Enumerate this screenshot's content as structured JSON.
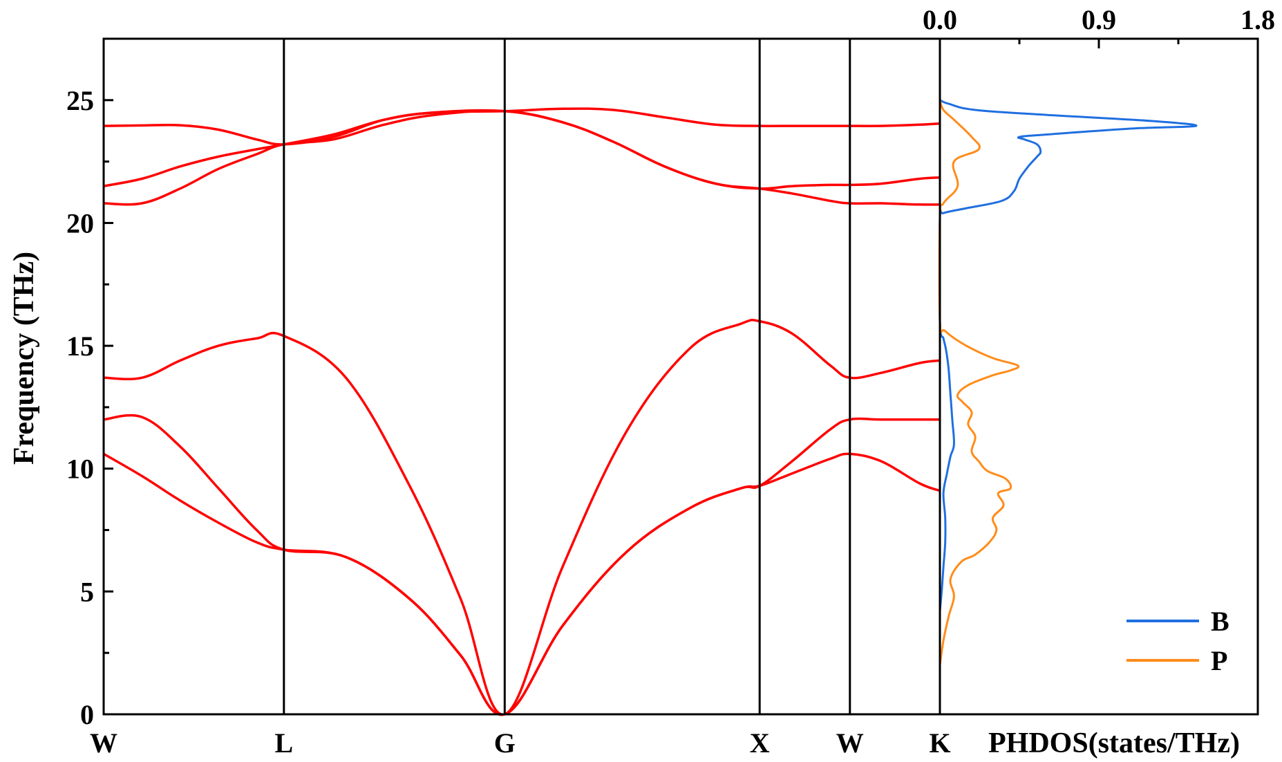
{
  "chart_data": [
    {
      "type": "line",
      "title": "",
      "xlabel": "",
      "ylabel": "Frequency (THz)",
      "ylim": [
        0,
        27.5
      ],
      "yticks": [
        "0",
        "5",
        "10",
        "15",
        "20",
        "25"
      ],
      "ytick_values": [
        0,
        5,
        10,
        15,
        20,
        25
      ],
      "kpath_labels": [
        "W",
        "L",
        "G",
        "X",
        "W",
        "K"
      ],
      "kpath_positions": [
        0,
        0.707,
        1.573,
        2.573,
        2.927,
        3.28
      ],
      "grid": false,
      "line_color": "#ff0000",
      "series": [
        {
          "x": [
            0,
            0.15,
            0.3,
            0.45,
            0.6,
            0.707,
            0.95,
            1.2,
            1.4,
            1.573,
            1.8,
            2.05,
            2.3,
            2.5,
            2.573,
            2.7,
            2.85,
            2.927,
            3.05,
            3.2,
            3.28
          ],
          "y": [
            10.6,
            9.7,
            8.7,
            7.8,
            7.0,
            6.7,
            6.4,
            4.7,
            2.4,
            0,
            3.6,
            6.6,
            8.4,
            9.2,
            9.3,
            9.8,
            10.4,
            10.6,
            10.3,
            9.4,
            9.1
          ]
        },
        {
          "x": [
            0,
            0.15,
            0.3,
            0.45,
            0.6,
            0.707,
            0.95,
            1.2,
            1.4,
            1.573,
            1.8,
            2.05,
            2.3,
            2.5,
            2.573,
            2.7,
            2.85,
            2.927,
            3.05,
            3.2,
            3.28
          ],
          "y": [
            12.0,
            12.1,
            10.9,
            9.2,
            7.5,
            6.7,
            6.4,
            4.7,
            2.4,
            0,
            3.6,
            6.6,
            8.4,
            9.2,
            9.3,
            10.3,
            11.6,
            12.0,
            12.0,
            12.0,
            12.0
          ]
        },
        {
          "x": [
            0,
            0.15,
            0.3,
            0.45,
            0.6,
            0.707,
            0.95,
            1.2,
            1.4,
            1.573,
            1.8,
            2.05,
            2.3,
            2.5,
            2.573,
            2.7,
            2.85,
            2.927,
            3.05,
            3.2,
            3.28
          ],
          "y": [
            13.7,
            13.7,
            14.4,
            15.0,
            15.3,
            15.4,
            13.7,
            9.3,
            4.7,
            0,
            6.0,
            11.5,
            14.9,
            15.9,
            16.0,
            15.5,
            14.2,
            13.7,
            13.9,
            14.3,
            14.4
          ]
        },
        {
          "x": [
            0,
            0.15,
            0.3,
            0.45,
            0.6,
            0.707,
            0.9,
            1.1,
            1.3,
            1.573,
            1.8,
            2.0,
            2.2,
            2.4,
            2.573,
            2.7,
            2.85,
            2.927,
            3.05,
            3.2,
            3.28
          ],
          "y": [
            20.8,
            20.8,
            21.4,
            22.2,
            22.8,
            23.2,
            23.4,
            24.0,
            24.4,
            24.55,
            24.1,
            23.3,
            22.3,
            21.6,
            21.4,
            21.2,
            20.9,
            20.8,
            20.8,
            20.75,
            20.75
          ]
        },
        {
          "x": [
            0,
            0.15,
            0.3,
            0.45,
            0.6,
            0.707,
            0.9,
            1.1,
            1.3,
            1.573,
            1.8,
            2.0,
            2.2,
            2.4,
            2.573,
            2.7,
            2.85,
            2.927,
            3.05,
            3.2,
            3.28
          ],
          "y": [
            21.5,
            21.8,
            22.3,
            22.7,
            23.0,
            23.2,
            23.6,
            24.2,
            24.5,
            24.55,
            24.1,
            23.3,
            22.3,
            21.6,
            21.4,
            21.5,
            21.55,
            21.55,
            21.6,
            21.8,
            21.85
          ]
        },
        {
          "x": [
            0,
            0.15,
            0.3,
            0.45,
            0.6,
            0.707,
            0.9,
            1.1,
            1.3,
            1.573,
            1.8,
            2.0,
            2.2,
            2.4,
            2.573,
            2.7,
            2.85,
            2.927,
            3.05,
            3.2,
            3.28
          ],
          "y": [
            23.95,
            23.97,
            23.98,
            23.8,
            23.4,
            23.2,
            23.5,
            24.2,
            24.5,
            24.55,
            24.65,
            24.6,
            24.3,
            24.0,
            23.95,
            23.95,
            23.95,
            23.95,
            23.95,
            24.0,
            24.05
          ]
        }
      ]
    },
    {
      "type": "line",
      "title": "",
      "xlabel": "PHDOS(states/THz)",
      "ylabel": "",
      "xlim": [
        0,
        1.8
      ],
      "xticks": [
        "0.0",
        "0.9",
        "1.8"
      ],
      "xtick_values": [
        0,
        0.9,
        1.8
      ],
      "ylim": [
        0,
        27.5
      ],
      "legend_position": "bottom-right",
      "series": [
        {
          "name": "B",
          "color": "#1f6fe0",
          "x": [
            0,
            0.01,
            0.02,
            0.03,
            0.03,
            0.02,
            0.04,
            0.06,
            0.08,
            0.07,
            0.06,
            0.05,
            0.04,
            0.03,
            0.02,
            0.0,
            0.0,
            0.02,
            0.15,
            0.35,
            0.42,
            0.45,
            0.5,
            0.55,
            0.57,
            0.55,
            0.48,
            0.45,
            0.6,
            1.1,
            1.45,
            1.2,
            0.6,
            0.2,
            0.05,
            0.0
          ],
          "y": [
            4.2,
            5.0,
            6.0,
            7.0,
            8.0,
            9.0,
            9.8,
            10.5,
            11.0,
            12.0,
            13.0,
            14.0,
            14.6,
            15.0,
            15.3,
            16.0,
            20.2,
            20.4,
            20.6,
            20.9,
            21.3,
            21.8,
            22.3,
            22.7,
            22.9,
            23.2,
            23.4,
            23.5,
            23.6,
            23.85,
            23.95,
            24.15,
            24.4,
            24.6,
            24.85,
            25.0
          ]
        },
        {
          "name": "P",
          "color": "#ff8c1a",
          "x": [
            0,
            0.02,
            0.05,
            0.08,
            0.06,
            0.12,
            0.2,
            0.28,
            0.32,
            0.3,
            0.36,
            0.33,
            0.4,
            0.37,
            0.27,
            0.22,
            0.18,
            0.2,
            0.16,
            0.18,
            0.13,
            0.1,
            0.16,
            0.3,
            0.4,
            0.44,
            0.3,
            0.15,
            0.03,
            0.0,
            0.0,
            0.02,
            0.1,
            0.08,
            0.22,
            0.18,
            0.08,
            0.02,
            0.0
          ],
          "y": [
            2.0,
            3.0,
            4.0,
            4.8,
            5.5,
            6.2,
            6.5,
            7.0,
            7.5,
            8.0,
            8.5,
            9.0,
            9.2,
            9.6,
            9.9,
            10.3,
            10.7,
            11.3,
            11.8,
            12.3,
            12.7,
            13.0,
            13.4,
            13.8,
            14.0,
            14.2,
            14.5,
            15.0,
            15.6,
            16.0,
            20.2,
            20.8,
            21.5,
            22.5,
            23.0,
            23.5,
            24.2,
            24.6,
            25.0
          ]
        }
      ]
    }
  ]
}
